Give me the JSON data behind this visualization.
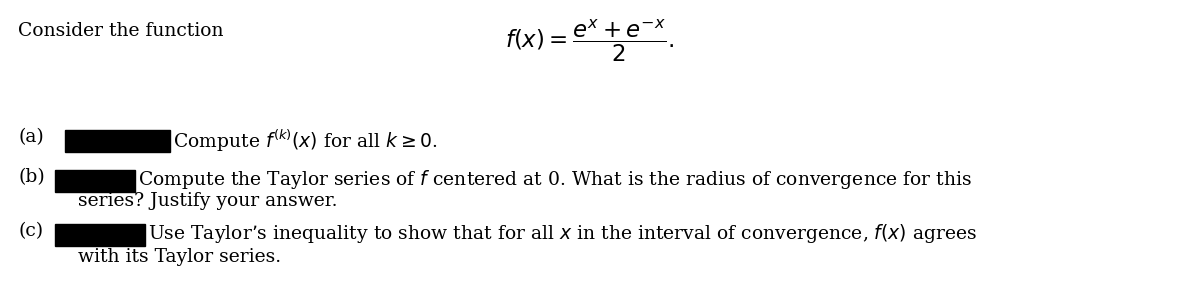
{
  "background_color": "#ffffff",
  "title_text": "Consider the function",
  "part_a_label": "(a)",
  "part_a_text": "Compute $f^{(k)}(x)$ for all $k \\geq 0$.",
  "part_b_label": "(b)",
  "part_b_text": "Compute the Taylor series of $f$ centered at 0. What is the radius of convergence for this",
  "part_b_text2": "series? Justify your answer.",
  "part_c_label": "(c)",
  "part_c_text": "Use Taylor’s inequality to show that for all $x$ in the interval of convergence, $f(x)$ agrees",
  "part_c_text2": "with its Taylor series.",
  "font_size": 13.5,
  "redact_color": "#000000"
}
